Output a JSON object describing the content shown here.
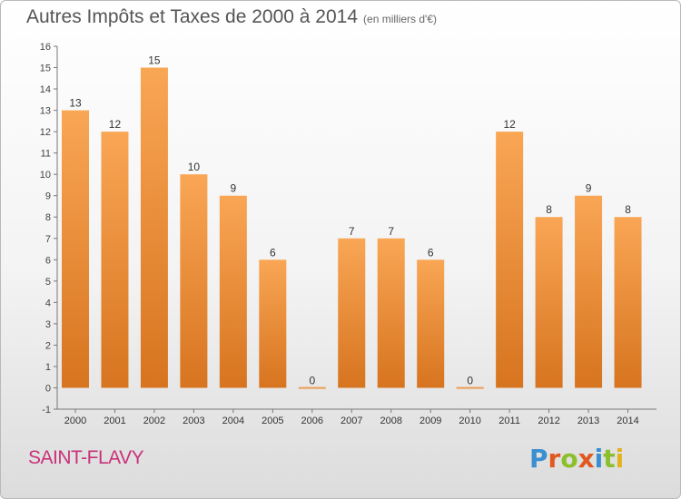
{
  "page": {
    "title": "Autres Impôts et Taxes de 2000 à 2014",
    "unit": "(en milliers d'€)"
  },
  "footer": {
    "city": "SAINT-FLAVY",
    "logo": "Proxiti"
  },
  "colors": {
    "bar_light": "#f9a655",
    "bar_dark": "#d7741f",
    "axis": "#777777",
    "city": "#c8327a"
  },
  "chart_data": {
    "type": "bar",
    "title": "Autres Impôts et Taxes de 2000 à 2014",
    "subtitle": "(en milliers d'€)",
    "categories": [
      "2000",
      "2001",
      "2002",
      "2003",
      "2004",
      "2005",
      "2006",
      "2007",
      "2008",
      "2009",
      "2010",
      "2011",
      "2012",
      "2013",
      "2014"
    ],
    "values": [
      13,
      12,
      15,
      10,
      9,
      6,
      0,
      7,
      7,
      6,
      0,
      12,
      8,
      9,
      8
    ],
    "ylim": [
      -1,
      16
    ],
    "yticks": [
      -1,
      0,
      1,
      2,
      3,
      4,
      5,
      6,
      7,
      8,
      9,
      10,
      11,
      12,
      13,
      14,
      15,
      16
    ],
    "grid": false,
    "legend": "none"
  }
}
